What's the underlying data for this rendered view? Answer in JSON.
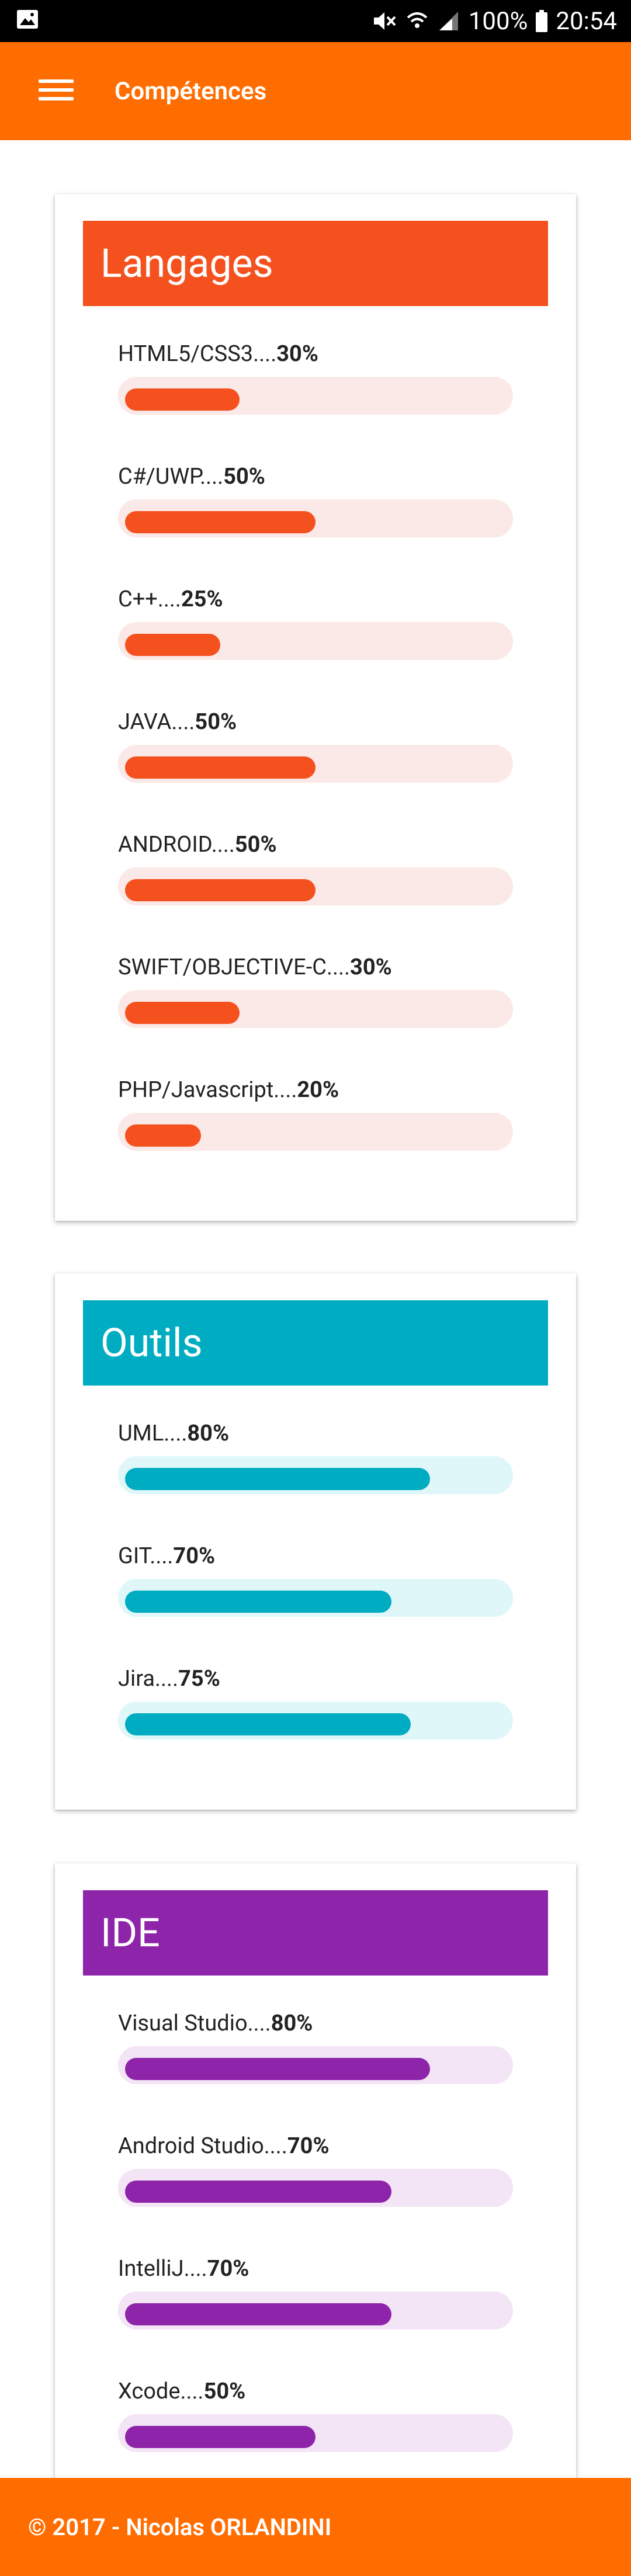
{
  "status_bar": {
    "battery": "100%",
    "time": "20:54"
  },
  "app_bar": {
    "title": "Compétences"
  },
  "sections": [
    {
      "title": "Langages",
      "color": "#f4511e",
      "track_color": "#fbe9e7",
      "skills": [
        {
          "name": "HTML5/CSS3....",
          "percent_label": "30%",
          "percent": 30
        },
        {
          "name": "C#/UWP....",
          "percent_label": "50%",
          "percent": 50
        },
        {
          "name": "C++....",
          "percent_label": "25%",
          "percent": 25
        },
        {
          "name": "JAVA....",
          "percent_label": "50%",
          "percent": 50
        },
        {
          "name": "ANDROID....",
          "percent_label": "50%",
          "percent": 50
        },
        {
          "name": "SWIFT/OBJECTIVE-C....",
          "percent_label": "30%",
          "percent": 30
        },
        {
          "name": "PHP/Javascript....",
          "percent_label": "20%",
          "percent": 20
        }
      ]
    },
    {
      "title": "Outils",
      "color": "#00acc1",
      "track_color": "#e0f7fa",
      "skills": [
        {
          "name": "UML....",
          "percent_label": "80%",
          "percent": 80
        },
        {
          "name": "GIT....",
          "percent_label": "70%",
          "percent": 70
        },
        {
          "name": "Jira....",
          "percent_label": "75%",
          "percent": 75
        }
      ]
    },
    {
      "title": "IDE",
      "color": "#8e24aa",
      "track_color": "#f3e5f5",
      "skills": [
        {
          "name": "Visual Studio....",
          "percent_label": "80%",
          "percent": 80
        },
        {
          "name": "Android Studio....",
          "percent_label": "70%",
          "percent": 70
        },
        {
          "name": "IntelliJ....",
          "percent_label": "70%",
          "percent": 70
        },
        {
          "name": "Xcode....",
          "percent_label": "50%",
          "percent": 50
        }
      ]
    }
  ],
  "footer": {
    "text": "© 2017 - Nicolas ORLANDINI"
  },
  "icons": {
    "status_left": "image-icon",
    "mute": "mute-icon",
    "wifi": "wifi-icon",
    "signal": "signal-icon",
    "battery": "battery-icon",
    "menu": "hamburger-menu-icon"
  }
}
